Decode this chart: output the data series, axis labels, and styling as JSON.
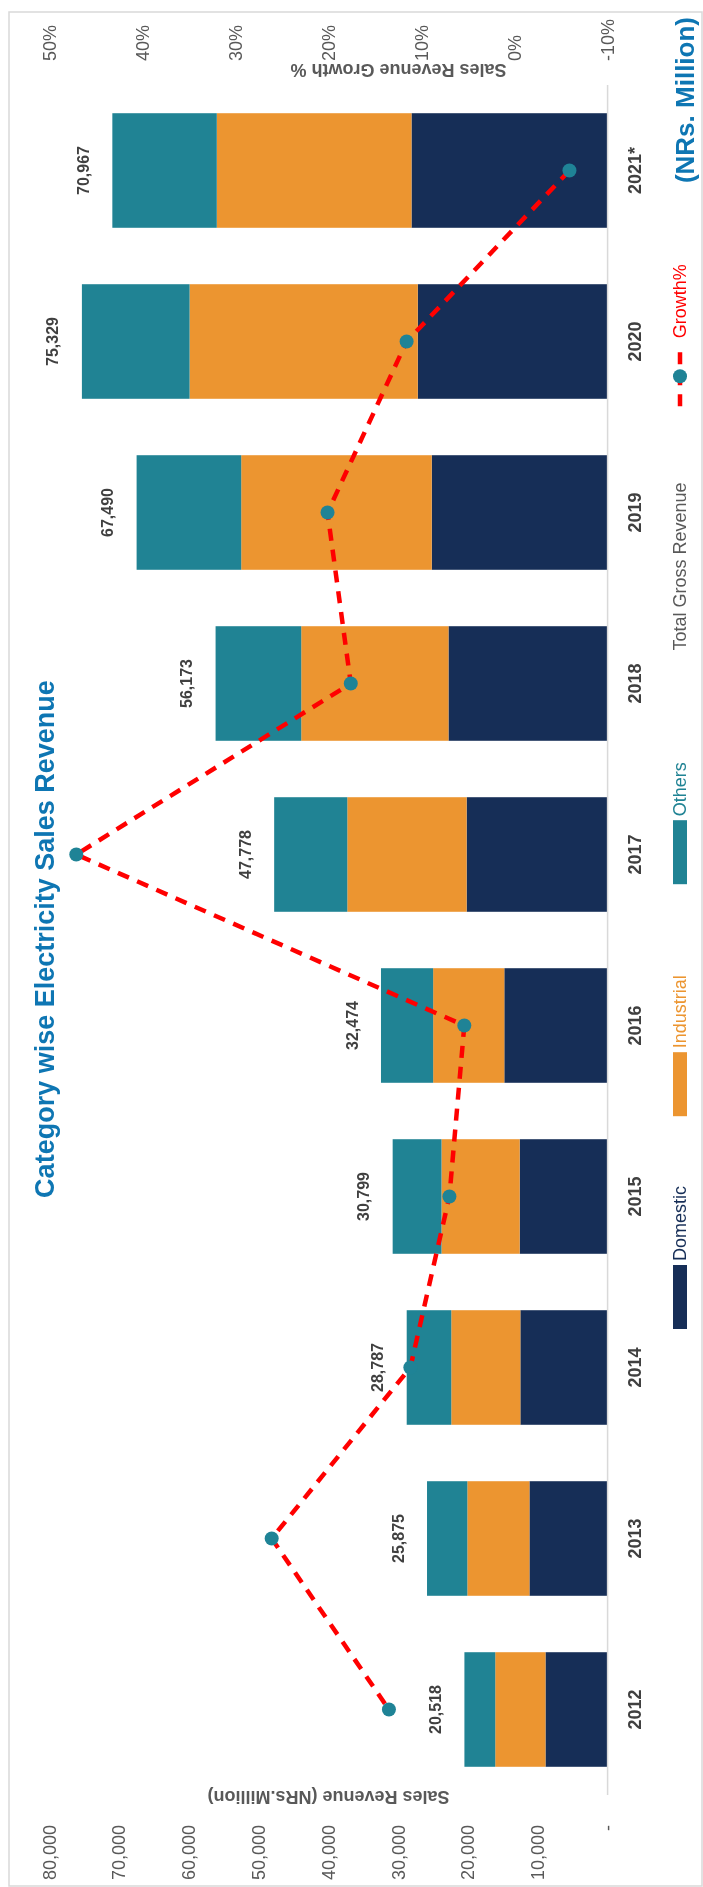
{
  "chart_data": {
    "type": "bar",
    "orientation": "horizontal",
    "title": "Category wise Electricity Sales Revenue",
    "subtitle": "(NRs. Million)",
    "xlabel": "Sales Revenue (NRs.Million)",
    "x2label": "Sales Revenue Growth %",
    "annotations": [
      "Total Gross Revenue"
    ],
    "categories": [
      "2021*",
      "2020",
      "2019",
      "2018",
      "2017",
      "2016",
      "2015",
      "2014",
      "2013",
      "2012"
    ],
    "stacked": true,
    "legend": "right",
    "series": [
      {
        "name": "Domestic",
        "color": "#162e57",
        "values": [
          28100,
          27200,
          25200,
          22800,
          20200,
          14800,
          12600,
          12500,
          11200,
          8900
        ]
      },
      {
        "name": "Industrial",
        "color": "#ec9530",
        "values": [
          27900,
          32700,
          27300,
          21100,
          17100,
          10200,
          11200,
          9900,
          8900,
          7200
        ]
      },
      {
        "name": "Others",
        "color": "#208394",
        "values": [
          14967,
          15429,
          14990,
          12273,
          10478,
          7474,
          6999,
          6387,
          5775,
          4418
        ]
      },
      {
        "name": "Growth%",
        "type": "line",
        "axis": "x2",
        "color": "#ff0000",
        "marker": "circle",
        "line_style": "dashed",
        "values": [
          -5.9,
          11.6,
          20.1,
          17.6,
          47.1,
          5.4,
          7.0,
          11.2,
          26.1,
          13.5
        ]
      }
    ],
    "totals": [
      "70,967",
      "75,329",
      "67,490",
      "56,173",
      "47,778",
      "32,474",
      "30,799",
      "28,787",
      "25,875",
      "20,518"
    ],
    "xlim": [
      80000,
      0
    ],
    "xticks": [
      {
        "value": 80000,
        "label": "80,000"
      },
      {
        "value": 70000,
        "label": "70,000"
      },
      {
        "value": 60000,
        "label": "60,000"
      },
      {
        "value": 50000,
        "label": "50,000"
      },
      {
        "value": 40000,
        "label": "40,000"
      },
      {
        "value": 30000,
        "label": "30,000"
      },
      {
        "value": 20000,
        "label": "20,000"
      },
      {
        "value": 10000,
        "label": "10,000"
      },
      {
        "value": 0,
        "label": "-"
      }
    ],
    "x2lim": [
      50,
      -10
    ],
    "x2ticks": [
      {
        "value": 50,
        "label": "50%"
      },
      {
        "value": 40,
        "label": "40%"
      },
      {
        "value": 30,
        "label": "30%"
      },
      {
        "value": 20,
        "label": "20%"
      },
      {
        "value": 10,
        "label": "10%"
      },
      {
        "value": 0,
        "label": "0%"
      },
      {
        "value": -10,
        "label": "-10%"
      }
    ]
  }
}
